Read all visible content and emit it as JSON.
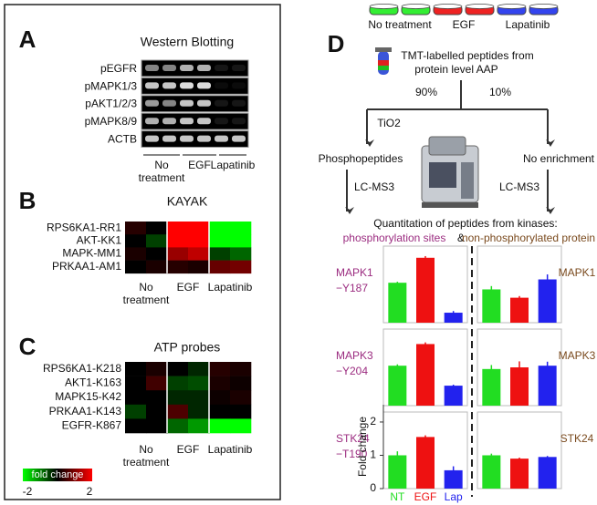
{
  "panel_a": {
    "letter": "A",
    "title": "Western Blotting",
    "rows": [
      "pEGFR",
      "pMAPK1/3",
      "pAKT1/2/3",
      "pMAPK8/9",
      "ACTB"
    ],
    "conditions": [
      [
        "No",
        "treatment"
      ],
      [
        "EGF"
      ],
      [
        "Lapatinib"
      ]
    ]
  },
  "panel_b": {
    "letter": "B",
    "title": "KAYAK",
    "rows": [
      "RPS6KA1-RR1",
      "AKT-KK1",
      "MAPK-MM1",
      "PRKAA1-AM1"
    ],
    "conditions": [
      [
        "No",
        "treatment"
      ],
      [
        "EGF"
      ],
      [
        "Lapatinib"
      ]
    ],
    "values": [
      [
        0.3,
        0,
        2,
        2,
        -2,
        -2
      ],
      [
        0,
        -0.5,
        2,
        2,
        -2,
        -2
      ],
      [
        0.2,
        0,
        1.2,
        1.5,
        -0.5,
        -0.8
      ],
      [
        0,
        0.2,
        0.3,
        0.2,
        0.8,
        0.9
      ]
    ]
  },
  "panel_c": {
    "letter": "C",
    "title": "ATP probes",
    "rows": [
      "RPS6KA1-K218",
      "AKT1-K163",
      "MAPK15-K42",
      "PRKAA1-K143",
      "EGFR-K867"
    ],
    "conditions": [
      [
        "No",
        "treatment"
      ],
      [
        "EGF"
      ],
      [
        "Lapatinib"
      ]
    ],
    "values": [
      [
        0,
        0.2,
        0,
        -0.3,
        0.3,
        0.2
      ],
      [
        0,
        0.5,
        -0.5,
        -0.6,
        0.2,
        0.1
      ],
      [
        0,
        0,
        -0.3,
        -0.3,
        0.1,
        0.2
      ],
      [
        -0.5,
        0,
        0.6,
        -0.3,
        0,
        0
      ],
      [
        0,
        0,
        -0.8,
        -1.2,
        -2,
        -2
      ]
    ]
  },
  "legend": {
    "title": "fold change",
    "min": -2,
    "max": 2
  },
  "panel_d": {
    "letter": "D",
    "dishes": [
      "No treatment",
      "EGF",
      "Lapatinib"
    ],
    "tmt": [
      "TMT-labelled peptides from",
      "protein level AAP"
    ],
    "split": [
      "90%",
      "10%"
    ],
    "tio2": "TiO2",
    "branches": [
      "Phosphopeptides",
      "No enrichment"
    ],
    "lcms": "LC-MS3",
    "quant": "Quantitation of peptides from kinases:",
    "quant_parts": [
      "phosphorylation sites",
      "&",
      "non-phosphorylated protein"
    ],
    "bars": {
      "ylim": [
        0,
        2.3
      ],
      "yticks": [
        0,
        1,
        2
      ],
      "y_label": "Fold change",
      "categories": [
        "NT",
        "EGF",
        "Lap"
      ],
      "colors": [
        "#22dd22",
        "#ee1111",
        "#2222ee"
      ],
      "sites": [
        {
          "label": [
            "MAPK1",
            "−Y187"
          ],
          "values": [
            1.2,
            1.95,
            0.3
          ],
          "errors": [
            0.03,
            0.05,
            0.05
          ]
        },
        {
          "label": [
            "MAPK3",
            "−Y204"
          ],
          "values": [
            1.2,
            1.85,
            0.6
          ],
          "errors": [
            0.04,
            0.05,
            0.03
          ]
        },
        {
          "label": [
            "STK24",
            "−T190"
          ],
          "values": [
            1.0,
            1.55,
            0.55
          ],
          "errors": [
            0.12,
            0.05,
            0.12
          ]
        }
      ],
      "proteins": [
        {
          "label": "MAPK1",
          "values": [
            1.0,
            0.75,
            1.3
          ],
          "errors": [
            0.1,
            0.05,
            0.15
          ]
        },
        {
          "label": "MAPK3",
          "values": [
            1.1,
            1.15,
            1.2
          ],
          "errors": [
            0.12,
            0.18,
            0.12
          ]
        },
        {
          "label": "STK24",
          "values": [
            1.0,
            0.9,
            0.95
          ],
          "errors": [
            0.05,
            0.03,
            0.03
          ]
        }
      ]
    }
  }
}
